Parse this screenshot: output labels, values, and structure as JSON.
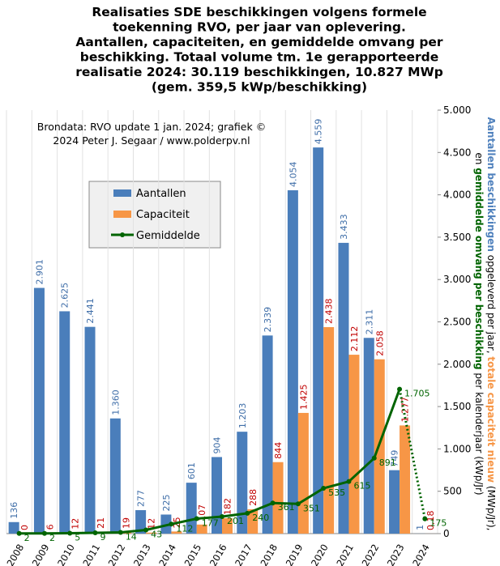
{
  "chart_data": {
    "type": "bar",
    "title": [
      "Realisaties SDE beschikkingen volgens formele",
      "toekenning RVO, per jaar van oplevering.",
      "Aantallen, capaciteiten, en gemiddelde omvang per",
      "beschikking. Totaal volume tm. 1e gerapporteerde",
      "realisatie 2024: 30.119 beschikkingen, 10.827 MWp",
      "(gem. 359,5 kWp/beschikking)"
    ],
    "annotation": [
      "Brondata: RVO update 1 jan. 2024; grafiek ©",
      "2024 Peter J. Segaar / www.polderpv.nl"
    ],
    "y2_label": [
      [
        {
          "text": "Aantallen beschikkingen",
          "color": "#4f81bd",
          "bold": true
        },
        {
          "text": " opgeleverd per jaar, ",
          "color": "#000000",
          "bold": false
        },
        {
          "text": "totale capaciteit nieuw",
          "color": "#f79646",
          "bold": true
        },
        {
          "text": " (MWp/Jr),",
          "color": "#000000",
          "bold": false
        }
      ],
      [
        {
          "text": "en ",
          "color": "#000000",
          "bold": false
        },
        {
          "text": "gemiddelde omvang per beschikking",
          "color": "#006400",
          "bold": true
        },
        {
          "text": " per kalenderjaar (kWp/Jr)",
          "color": "#000000",
          "bold": false
        }
      ]
    ],
    "categories": [
      "2008",
      "2009",
      "2010",
      "2011",
      "2012",
      "2013",
      "2014",
      "2015",
      "2016",
      "2017",
      "2018",
      "2019",
      "2020",
      "2021",
      "2022",
      "2023",
      "2024"
    ],
    "series": [
      {
        "name": "Aantallen",
        "color": "#4a7ebb",
        "label_color": "#3f6ea8",
        "values": [
          136,
          2901,
          2625,
          2441,
          1360,
          277,
          225,
          601,
          904,
          1203,
          2339,
          4054,
          4559,
          3433,
          2311,
          749,
          1
        ],
        "value_labels": [
          "136",
          "2.901",
          "2.625",
          "2.441",
          "1.360",
          "277",
          "225",
          "601",
          "904",
          "1.203",
          "2.339",
          "4.054",
          "4.559",
          "3.433",
          "2.311",
          "749",
          "1"
        ]
      },
      {
        "name": "Capaciteit",
        "color": "#f79646",
        "label_color": "#c00000",
        "values": [
          0,
          6,
          12,
          21,
          19,
          12,
          25,
          107,
          182,
          288,
          844,
          1425,
          2438,
          2112,
          2058,
          1277,
          0.18
        ],
        "value_labels": [
          "0",
          "6",
          "12",
          "21",
          "19",
          "12",
          "25",
          "107",
          "182",
          "288",
          "844",
          "1.425",
          "2.438",
          "2.112",
          "2.058",
          "1.277",
          "0,18"
        ]
      },
      {
        "name": "Gemiddelde",
        "type": "line",
        "color": "#006400",
        "dotted_last_segment": true,
        "values": [
          2,
          2,
          5,
          9,
          14,
          43,
          112,
          177,
          201,
          240,
          361,
          351,
          535,
          615,
          891,
          1705,
          175
        ],
        "value_labels": [
          "2",
          "2",
          "5",
          "9",
          "14",
          "43",
          "112",
          "177",
          "201",
          "240",
          "361",
          "351",
          "535",
          "615",
          "891",
          "1.705",
          "175"
        ]
      }
    ],
    "y2lim": [
      0,
      5000
    ],
    "y2ticks": [
      0,
      500,
      {
        "value": 1000,
        "label": "1.000"
      },
      {
        "value": 1500,
        "label": "1.500"
      },
      {
        "value": 2000,
        "label": "2.000"
      },
      {
        "value": 2500,
        "label": "2.500"
      },
      {
        "value": 3000,
        "label": "3.000"
      },
      {
        "value": 3500,
        "label": "3.500"
      },
      {
        "value": 4000,
        "label": "4.000"
      },
      {
        "value": 4500,
        "label": "4.500"
      },
      {
        "value": 5000,
        "label": "5.000"
      }
    ],
    "grid": "vertical"
  }
}
